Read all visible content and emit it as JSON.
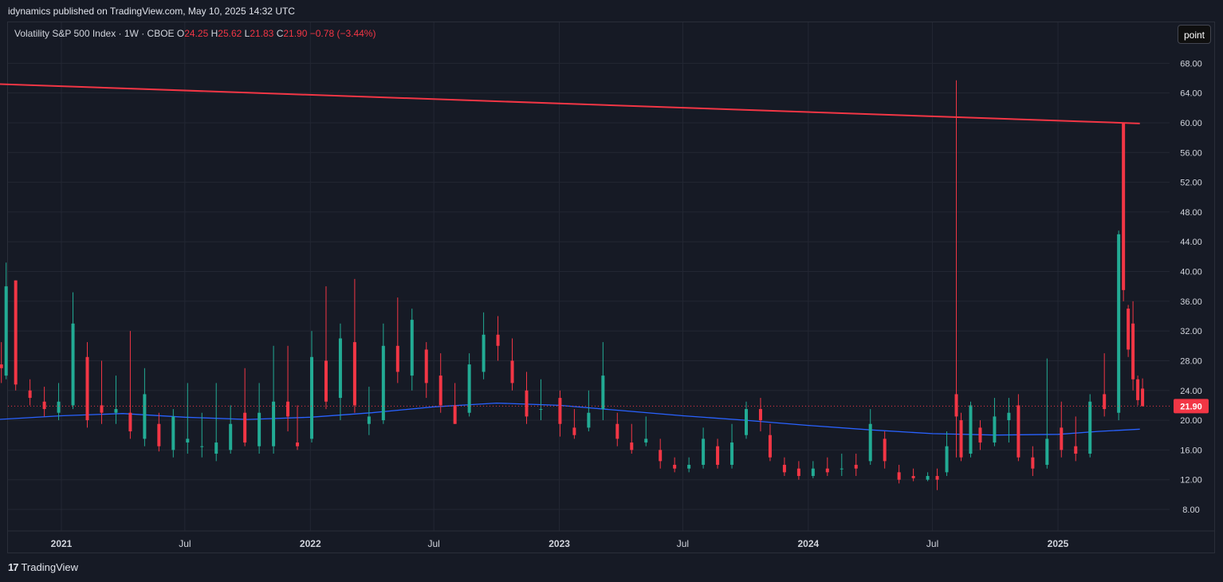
{
  "header": {
    "published": "idynamics published on TradingView.com, May 10, 2025 14:32 UTC"
  },
  "legend": {
    "symbol": "Volatility S&P 500 Index · 1W · CBOE",
    "o_label": "O",
    "o_value": "24.25",
    "h_label": "H",
    "h_value": "25.62",
    "l_label": "L",
    "l_value": "21.83",
    "c_label": "C",
    "c_value": "21.90",
    "change": "−0.78 (−3.44%)"
  },
  "toolbar": {
    "point_label": "point"
  },
  "footer": {
    "brand": "TradingView",
    "logo": "17"
  },
  "colors": {
    "up": "#22ab94",
    "down": "#f23645",
    "ma": "#2962ff",
    "trendline": "#f23645",
    "grid": "#232733",
    "background": "#161a25"
  },
  "chart_data": {
    "type": "candlestick",
    "symbol": "Volatility S&P 500 Index",
    "interval": "1W",
    "exchange": "CBOE",
    "ylim": [
      6,
      72
    ],
    "y_ticks": [
      "68.00",
      "64.00",
      "60.00",
      "56.00",
      "52.00",
      "48.00",
      "44.00",
      "40.00",
      "36.00",
      "32.00",
      "28.00",
      "24.00",
      "20.00",
      "16.00",
      "12.00",
      "8.00"
    ],
    "x_ticks": [
      "2021",
      "Jul",
      "2022",
      "Jul",
      "2023",
      "Jul",
      "2024",
      "Jul",
      "2025"
    ],
    "last_price": "21.90",
    "last_price_value": 21.9,
    "trendline": {
      "start": {
        "date": "2020-10",
        "value": 65.2
      },
      "end": {
        "date": "2025-05",
        "value": 59.9
      }
    },
    "ma_line": {
      "points": [
        [
          "2020-10",
          20.1
        ],
        [
          "2021-01",
          20.6
        ],
        [
          "2021-04",
          20.9
        ],
        [
          "2021-07",
          20.4
        ],
        [
          "2021-10",
          20.1
        ],
        [
          "2022-01",
          20.4
        ],
        [
          "2022-04",
          21.0
        ],
        [
          "2022-07",
          21.8
        ],
        [
          "2022-10",
          22.3
        ],
        [
          "2023-01",
          22.0
        ],
        [
          "2023-04",
          21.3
        ],
        [
          "2023-07",
          20.6
        ],
        [
          "2023-10",
          20.0
        ],
        [
          "2024-01",
          19.3
        ],
        [
          "2024-04",
          18.7
        ],
        [
          "2024-07",
          18.2
        ],
        [
          "2024-10",
          18.0
        ],
        [
          "2025-01",
          18.1
        ],
        [
          "2025-03",
          18.5
        ],
        [
          "2025-05",
          18.8
        ]
      ]
    },
    "candles": [
      {
        "t": "2020-10-05",
        "o": 27.5,
        "h": 30.5,
        "l": 25.0,
        "c": 27.0
      },
      {
        "t": "2020-10-12",
        "o": 26.0,
        "h": 41.2,
        "l": 25.5,
        "c": 38.0
      },
      {
        "t": "2020-10-26",
        "o": 38.8,
        "h": 38.8,
        "l": 24.0,
        "c": 24.8
      },
      {
        "t": "2020-11-16",
        "o": 24.0,
        "h": 25.5,
        "l": 22.0,
        "c": 23.0
      },
      {
        "t": "2020-12-07",
        "o": 22.5,
        "h": 24.5,
        "l": 20.5,
        "c": 21.5
      },
      {
        "t": "2020-12-28",
        "o": 21.0,
        "h": 25.0,
        "l": 20.0,
        "c": 22.5
      },
      {
        "t": "2021-01-18",
        "o": 22.0,
        "h": 37.2,
        "l": 21.5,
        "c": 33.0
      },
      {
        "t": "2021-02-08",
        "o": 28.5,
        "h": 30.5,
        "l": 19.0,
        "c": 20.0
      },
      {
        "t": "2021-03-01",
        "o": 22.0,
        "h": 28.0,
        "l": 19.5,
        "c": 21.0
      },
      {
        "t": "2021-03-22",
        "o": 21.0,
        "h": 26.0,
        "l": 19.5,
        "c": 21.5
      },
      {
        "t": "2021-04-12",
        "o": 21.0,
        "h": 32.0,
        "l": 17.5,
        "c": 18.5
      },
      {
        "t": "2021-05-03",
        "o": 17.5,
        "h": 27.0,
        "l": 16.5,
        "c": 23.5
      },
      {
        "t": "2021-05-24",
        "o": 19.5,
        "h": 21.0,
        "l": 15.8,
        "c": 16.5
      },
      {
        "t": "2021-06-14",
        "o": 16.0,
        "h": 21.5,
        "l": 15.0,
        "c": 20.5
      },
      {
        "t": "2021-07-05",
        "o": 17.0,
        "h": 25.0,
        "l": 15.5,
        "c": 17.5
      },
      {
        "t": "2021-07-26",
        "o": 16.5,
        "h": 21.0,
        "l": 15.0,
        "c": 16.5
      },
      {
        "t": "2021-08-16",
        "o": 15.5,
        "h": 25.0,
        "l": 14.5,
        "c": 17.0
      },
      {
        "t": "2021-09-06",
        "o": 16.0,
        "h": 22.0,
        "l": 15.5,
        "c": 19.5
      },
      {
        "t": "2021-09-27",
        "o": 21.0,
        "h": 27.0,
        "l": 16.5,
        "c": 17.0
      },
      {
        "t": "2021-10-18",
        "o": 16.5,
        "h": 25.0,
        "l": 15.5,
        "c": 21.0
      },
      {
        "t": "2021-11-08",
        "o": 16.5,
        "h": 30.0,
        "l": 15.5,
        "c": 22.5
      },
      {
        "t": "2021-11-29",
        "o": 22.5,
        "h": 30.0,
        "l": 18.5,
        "c": 20.5
      },
      {
        "t": "2021-12-13",
        "o": 17.0,
        "h": 22.0,
        "l": 16.0,
        "c": 16.5
      },
      {
        "t": "2022-01-03",
        "o": 17.5,
        "h": 32.0,
        "l": 17.0,
        "c": 28.5
      },
      {
        "t": "2022-01-24",
        "o": 28.0,
        "h": 38.0,
        "l": 21.5,
        "c": 22.5
      },
      {
        "t": "2022-02-14",
        "o": 23.0,
        "h": 33.0,
        "l": 20.0,
        "c": 31.0
      },
      {
        "t": "2022-03-07",
        "o": 30.5,
        "h": 39.0,
        "l": 21.0,
        "c": 22.0
      },
      {
        "t": "2022-03-28",
        "o": 19.5,
        "h": 24.5,
        "l": 18.0,
        "c": 20.5
      },
      {
        "t": "2022-04-18",
        "o": 20.0,
        "h": 33.0,
        "l": 19.5,
        "c": 30.0
      },
      {
        "t": "2022-05-09",
        "o": 30.0,
        "h": 36.5,
        "l": 25.0,
        "c": 26.5
      },
      {
        "t": "2022-05-30",
        "o": 26.0,
        "h": 35.0,
        "l": 24.0,
        "c": 33.5
      },
      {
        "t": "2022-06-20",
        "o": 29.5,
        "h": 30.5,
        "l": 23.0,
        "c": 25.0
      },
      {
        "t": "2022-07-11",
        "o": 26.0,
        "h": 29.0,
        "l": 21.0,
        "c": 22.0
      },
      {
        "t": "2022-08-01",
        "o": 22.0,
        "h": 25.0,
        "l": 19.5,
        "c": 19.5
      },
      {
        "t": "2022-08-22",
        "o": 21.0,
        "h": 29.0,
        "l": 20.5,
        "c": 27.5
      },
      {
        "t": "2022-09-12",
        "o": 26.5,
        "h": 34.5,
        "l": 25.5,
        "c": 31.5
      },
      {
        "t": "2022-10-03",
        "o": 31.5,
        "h": 34.0,
        "l": 28.0,
        "c": 30.0
      },
      {
        "t": "2022-10-24",
        "o": 28.0,
        "h": 31.0,
        "l": 24.0,
        "c": 25.0
      },
      {
        "t": "2022-11-14",
        "o": 24.0,
        "h": 26.5,
        "l": 19.5,
        "c": 20.5
      },
      {
        "t": "2022-12-05",
        "o": 21.5,
        "h": 25.5,
        "l": 20.0,
        "c": 21.5
      },
      {
        "t": "2023-01-02",
        "o": 23.0,
        "h": 24.0,
        "l": 17.8,
        "c": 19.5
      },
      {
        "t": "2023-01-23",
        "o": 19.0,
        "h": 21.5,
        "l": 17.5,
        "c": 18.0
      },
      {
        "t": "2023-02-13",
        "o": 19.0,
        "h": 24.0,
        "l": 18.5,
        "c": 21.0
      },
      {
        "t": "2023-03-06",
        "o": 21.5,
        "h": 30.5,
        "l": 20.0,
        "c": 26.0
      },
      {
        "t": "2023-03-27",
        "o": 19.5,
        "h": 21.0,
        "l": 16.5,
        "c": 17.5
      },
      {
        "t": "2023-04-17",
        "o": 17.0,
        "h": 19.5,
        "l": 15.5,
        "c": 16.0
      },
      {
        "t": "2023-05-08",
        "o": 17.0,
        "h": 20.5,
        "l": 16.5,
        "c": 17.5
      },
      {
        "t": "2023-05-29",
        "o": 16.0,
        "h": 17.5,
        "l": 13.5,
        "c": 14.5
      },
      {
        "t": "2023-06-19",
        "o": 14.0,
        "h": 15.0,
        "l": 13.0,
        "c": 13.5
      },
      {
        "t": "2023-07-10",
        "o": 13.5,
        "h": 15.0,
        "l": 13.0,
        "c": 14.0
      },
      {
        "t": "2023-07-31",
        "o": 14.0,
        "h": 19.0,
        "l": 13.5,
        "c": 17.5
      },
      {
        "t": "2023-08-21",
        "o": 16.5,
        "h": 17.5,
        "l": 13.5,
        "c": 14.0
      },
      {
        "t": "2023-09-11",
        "o": 14.0,
        "h": 19.5,
        "l": 13.5,
        "c": 17.0
      },
      {
        "t": "2023-10-02",
        "o": 18.0,
        "h": 22.5,
        "l": 17.5,
        "c": 21.5
      },
      {
        "t": "2023-10-23",
        "o": 21.5,
        "h": 23.0,
        "l": 18.5,
        "c": 20.0
      },
      {
        "t": "2023-11-06",
        "o": 18.0,
        "h": 19.5,
        "l": 14.5,
        "c": 15.0
      },
      {
        "t": "2023-11-27",
        "o": 14.0,
        "h": 15.0,
        "l": 12.5,
        "c": 13.0
      },
      {
        "t": "2023-12-18",
        "o": 13.5,
        "h": 14.5,
        "l": 12.0,
        "c": 12.5
      },
      {
        "t": "2024-01-08",
        "o": 12.5,
        "h": 14.5,
        "l": 12.2,
        "c": 13.5
      },
      {
        "t": "2024-01-29",
        "o": 13.5,
        "h": 15.0,
        "l": 12.5,
        "c": 13.0
      },
      {
        "t": "2024-02-19",
        "o": 13.5,
        "h": 15.5,
        "l": 12.5,
        "c": 13.5
      },
      {
        "t": "2024-03-11",
        "o": 14.0,
        "h": 15.5,
        "l": 12.5,
        "c": 13.5
      },
      {
        "t": "2024-04-01",
        "o": 14.5,
        "h": 21.5,
        "l": 14.0,
        "c": 19.5
      },
      {
        "t": "2024-04-22",
        "o": 17.5,
        "h": 18.5,
        "l": 13.5,
        "c": 14.5
      },
      {
        "t": "2024-05-13",
        "o": 13.0,
        "h": 14.0,
        "l": 11.5,
        "c": 12.0
      },
      {
        "t": "2024-06-03",
        "o": 12.5,
        "h": 13.5,
        "l": 11.8,
        "c": 12.2
      },
      {
        "t": "2024-06-24",
        "o": 12.0,
        "h": 13.0,
        "l": 11.8,
        "c": 12.5
      },
      {
        "t": "2024-07-08",
        "o": 12.5,
        "h": 13.5,
        "l": 10.6,
        "c": 12.0
      },
      {
        "t": "2024-07-22",
        "o": 13.0,
        "h": 18.5,
        "l": 12.5,
        "c": 16.5
      },
      {
        "t": "2024-08-05",
        "o": 23.5,
        "h": 65.7,
        "l": 15.0,
        "c": 20.5
      },
      {
        "t": "2024-08-12",
        "o": 20.0,
        "h": 21.0,
        "l": 14.5,
        "c": 15.0
      },
      {
        "t": "2024-08-26",
        "o": 15.5,
        "h": 22.5,
        "l": 15.0,
        "c": 22.0
      },
      {
        "t": "2024-09-09",
        "o": 19.0,
        "h": 20.0,
        "l": 16.0,
        "c": 17.0
      },
      {
        "t": "2024-09-30",
        "o": 17.0,
        "h": 23.0,
        "l": 16.5,
        "c": 20.5
      },
      {
        "t": "2024-10-21",
        "o": 20.0,
        "h": 23.0,
        "l": 17.0,
        "c": 21.0
      },
      {
        "t": "2024-11-04",
        "o": 22.0,
        "h": 23.5,
        "l": 14.5,
        "c": 15.0
      },
      {
        "t": "2024-11-25",
        "o": 15.0,
        "h": 16.5,
        "l": 12.5,
        "c": 13.5
      },
      {
        "t": "2024-12-16",
        "o": 14.0,
        "h": 28.3,
        "l": 13.5,
        "c": 17.5
      },
      {
        "t": "2025-01-06",
        "o": 19.0,
        "h": 22.5,
        "l": 15.0,
        "c": 16.0
      },
      {
        "t": "2025-01-27",
        "o": 16.5,
        "h": 20.5,
        "l": 14.5,
        "c": 15.5
      },
      {
        "t": "2025-02-17",
        "o": 15.5,
        "h": 23.5,
        "l": 15.0,
        "c": 22.5
      },
      {
        "t": "2025-03-10",
        "o": 23.5,
        "h": 29.0,
        "l": 20.5,
        "c": 21.5
      },
      {
        "t": "2025-03-31",
        "o": 21.0,
        "h": 45.5,
        "l": 20.0,
        "c": 45.0
      },
      {
        "t": "2025-04-07",
        "o": 60.0,
        "h": 60.0,
        "l": 36.0,
        "c": 37.5
      },
      {
        "t": "2025-04-14",
        "o": 35.0,
        "h": 35.5,
        "l": 28.5,
        "c": 29.5
      },
      {
        "t": "2025-04-21",
        "o": 33.0,
        "h": 36.0,
        "l": 24.0,
        "c": 25.5
      },
      {
        "t": "2025-04-28",
        "o": 25.5,
        "h": 26.0,
        "l": 22.0,
        "c": 22.7
      },
      {
        "t": "2025-05-05",
        "o": 24.25,
        "h": 25.62,
        "l": 21.83,
        "c": 21.9
      }
    ]
  }
}
